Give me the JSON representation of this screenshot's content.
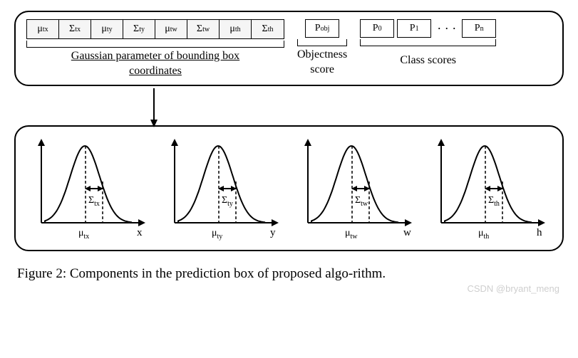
{
  "top": {
    "gaussian_cells": [
      "μ_tx",
      "Σ_tx",
      "μ_ty",
      "Σ_ty",
      "μ_tw",
      "Σ_tw",
      "μ_th",
      "Σ_th"
    ],
    "gaussian_label_l1": "Gaussian parameter of bounding box",
    "gaussian_label_l2": "coordinates",
    "obj_cell": "P_obj",
    "obj_label_l1": "Objectness",
    "obj_label_l2": "score",
    "class_cells": [
      "P_0",
      "P_1",
      "P_n"
    ],
    "class_dots": "· · ·",
    "class_label": "Class scores"
  },
  "charts": [
    {
      "sigma": "Σ_tx",
      "mu": "μ_tx",
      "axis": "x"
    },
    {
      "sigma": "Σ_ty",
      "mu": "μ_ty",
      "axis": "y"
    },
    {
      "sigma": "Σ_tw",
      "mu": "μ_tw",
      "axis": "w"
    },
    {
      "sigma": "Σ_th",
      "mu": "μ_th",
      "axis": "h"
    }
  ],
  "caption": "Figure 2:  Components in the prediction box of proposed algo-rithm.",
  "watermark": "CSDN @bryant_meng",
  "style": {
    "stroke": "#000000",
    "stroke_width": 2,
    "bg": "#ffffff",
    "cell_bg": "#f5f5f5",
    "font_family": "Georgia, Times New Roman, serif",
    "caption_fontsize": 19,
    "label_fontsize": 16,
    "cell_fontsize": 14,
    "panel_radius": 20
  }
}
